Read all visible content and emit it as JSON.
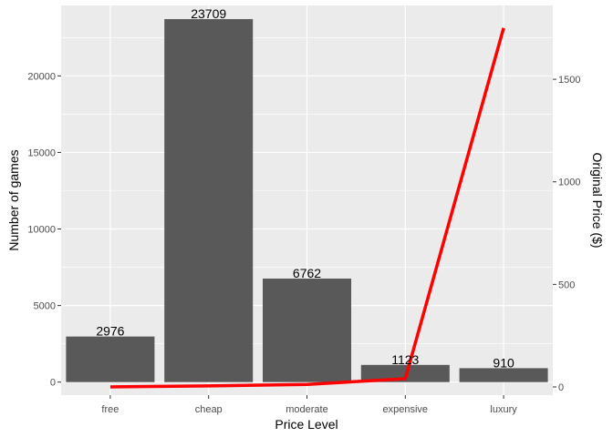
{
  "chart_data": {
    "type": "bar",
    "categories": [
      "free",
      "cheap",
      "moderate",
      "expensive",
      "luxury"
    ],
    "values": [
      2976,
      23709,
      6762,
      1123,
      910
    ],
    "bar_labels": [
      "2976",
      "23709",
      "6762",
      "1123",
      "910"
    ],
    "xlabel": "Price Level",
    "ylabel": "Number of games",
    "ylabel_right": "Original Price ($)",
    "ylim": [
      -850,
      24600
    ],
    "y_ticks": [
      0,
      5000,
      10000,
      15000,
      20000
    ],
    "y_tick_labels": [
      "0",
      "5000",
      "10000",
      "15000",
      "20000"
    ],
    "y2lim": [
      -40,
      1860
    ],
    "y2_ticks": [
      0,
      500,
      1000,
      1500
    ],
    "y2_tick_labels": [
      "0",
      "500",
      "1000",
      "1500"
    ],
    "line_series": {
      "axis": "right",
      "values": [
        0,
        5,
        12,
        40,
        1750
      ]
    },
    "grid": true,
    "colors": {
      "panel_background": "#ebebeb",
      "grid": "#ffffff",
      "bar": "#595959",
      "line": "#ff0000"
    }
  }
}
